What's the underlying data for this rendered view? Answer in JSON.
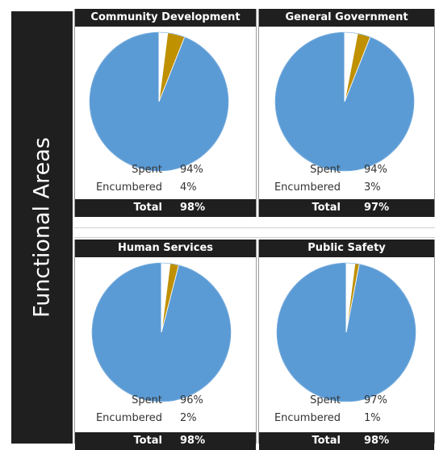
{
  "side_title": "Functional Areas",
  "colors": {
    "spent": "#5B9BD5",
    "encumbered": "#BF9000",
    "remaining": "#FFFFFF",
    "dark": "#1F1F1F"
  },
  "labels": {
    "spent": "Spent",
    "encumbered": "Encumbered",
    "total": "Total"
  },
  "chart_data": [
    {
      "type": "pie",
      "title": "Community Development",
      "slices": [
        {
          "label": "Spent",
          "value": 94
        },
        {
          "label": "Encumbered",
          "value": 4
        },
        {
          "label": "Remaining",
          "value": 2
        }
      ],
      "spent": "94%",
      "encumbered": "4%",
      "total": "98%"
    },
    {
      "type": "pie",
      "title": "General Government",
      "slices": [
        {
          "label": "Spent",
          "value": 94
        },
        {
          "label": "Encumbered",
          "value": 3
        },
        {
          "label": "Remaining",
          "value": 3
        }
      ],
      "spent": "94%",
      "encumbered": "3%",
      "total": "97%"
    },
    {
      "type": "pie",
      "title": "Human Services",
      "slices": [
        {
          "label": "Spent",
          "value": 96
        },
        {
          "label": "Encumbered",
          "value": 2
        },
        {
          "label": "Remaining",
          "value": 2
        }
      ],
      "spent": "96%",
      "encumbered": "2%",
      "total": "98%"
    },
    {
      "type": "pie",
      "title": "Public Safety",
      "slices": [
        {
          "label": "Spent",
          "value": 97
        },
        {
          "label": "Encumbered",
          "value": 1
        },
        {
          "label": "Remaining",
          "value": 2
        }
      ],
      "spent": "97%",
      "encumbered": "1%",
      "total": "98%"
    }
  ]
}
